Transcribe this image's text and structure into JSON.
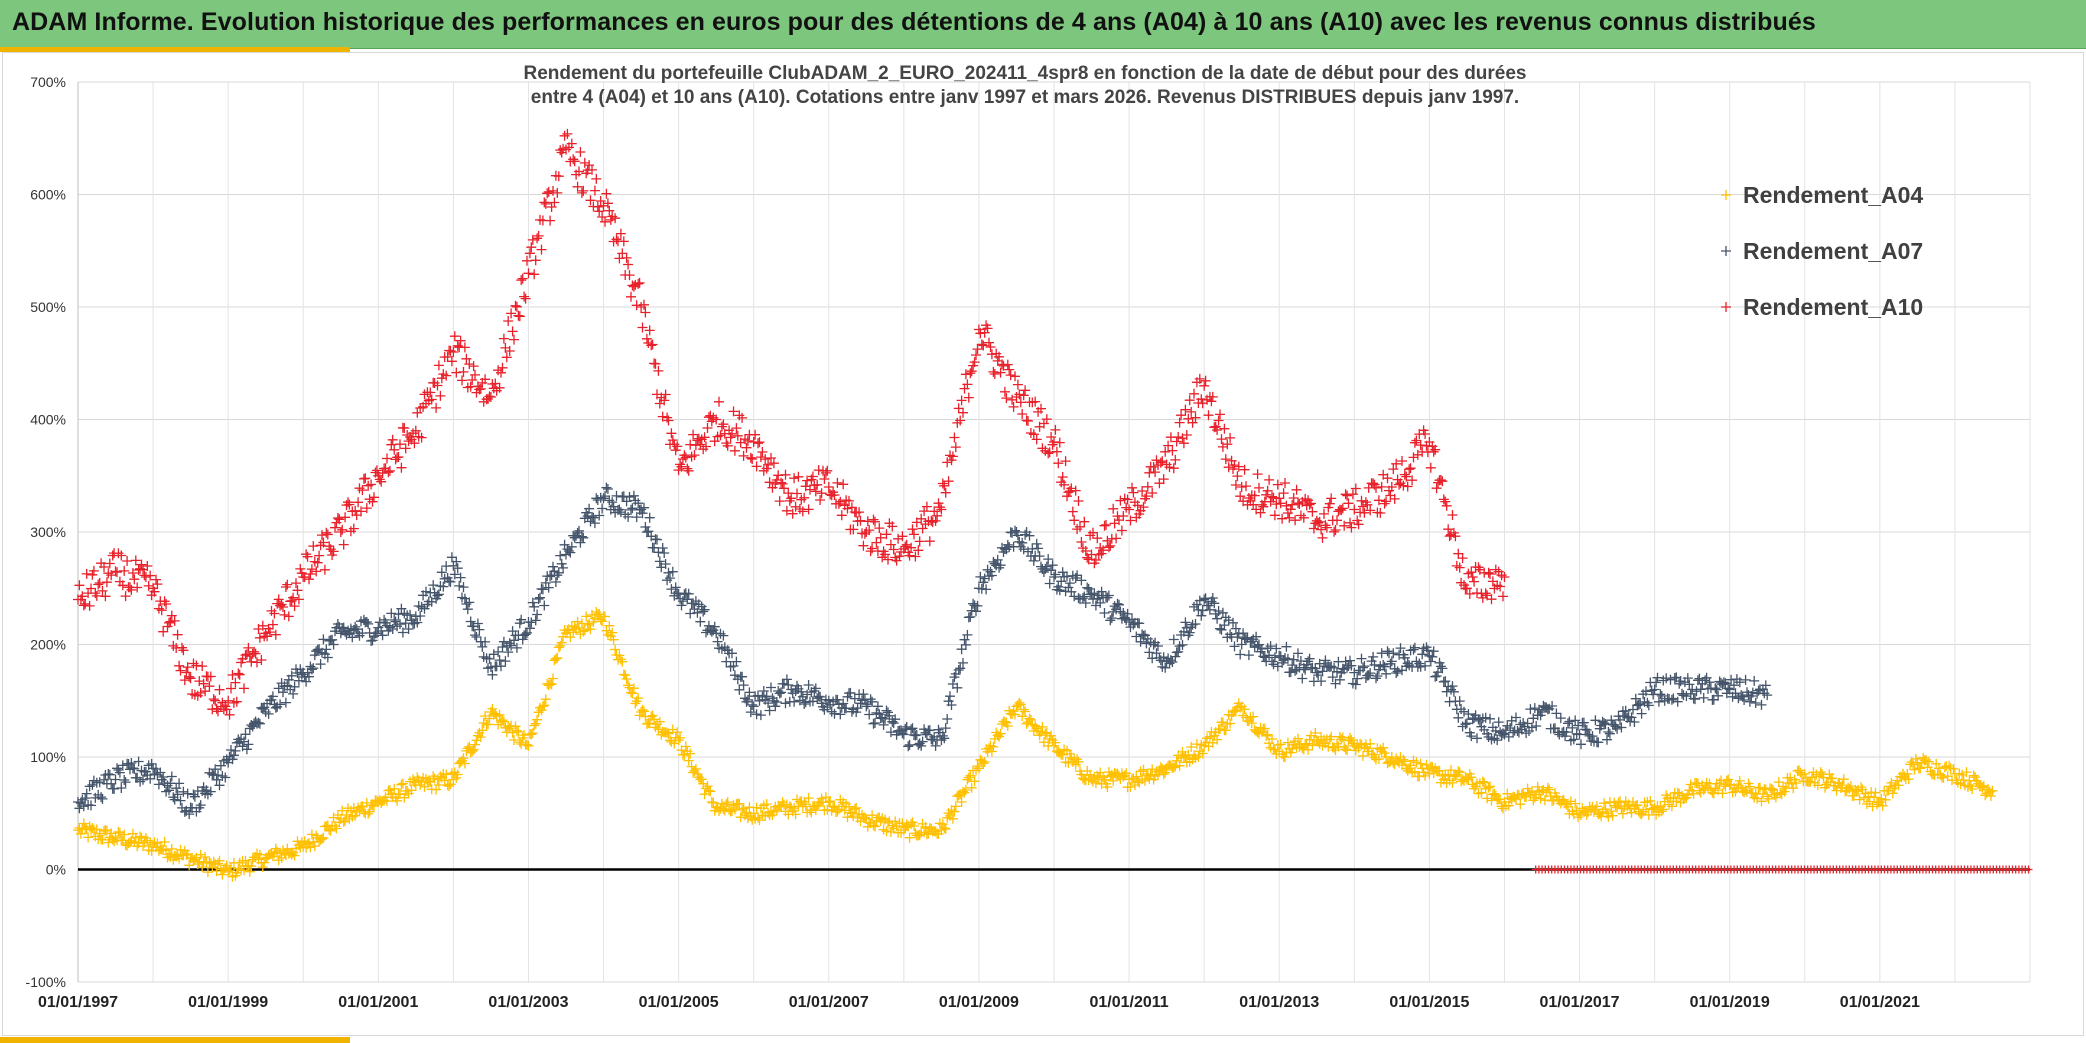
{
  "banner": {
    "title": "ADAM Informe. Evolution historique des performances en euros pour des détentions de 4 ans (A04) à 10 ans (A10) avec les revenus connus distribués"
  },
  "colors": {
    "banner_bg": "#7dc67d",
    "accent": "#f0b400",
    "a04": "#ffc000",
    "a07": "#44546a",
    "a10": "#e8202a",
    "zero_line": "#000000"
  },
  "chart_data": {
    "type": "scatter",
    "marker": "plus",
    "title_line1": "Rendement du portefeuille ClubADAM_2_EURO_202411_4spr8  en fonction de la date de début pour des durées",
    "title_line2": "entre 4 (A04) et 10 ans (A10). Cotations entre janv 1997 et mars 2026. Revenus DISTRIBUES depuis janv 1997.",
    "xlabel": "",
    "ylabel": "",
    "xlim": [
      "01/01/1997",
      "01/01/2023"
    ],
    "ylim": [
      -100,
      700
    ],
    "y_unit": "%",
    "y_ticks": [
      "700%",
      "600%",
      "500%",
      "400%",
      "300%",
      "200%",
      "100%",
      "0%",
      "-100%"
    ],
    "x_ticks": [
      "01/01/1997",
      "01/01/1999",
      "01/01/2001",
      "01/01/2003",
      "01/01/2005",
      "01/01/2007",
      "01/01/2009",
      "01/01/2011",
      "01/01/2013",
      "01/01/2015",
      "01/01/2017",
      "01/01/2019",
      "01/01/2021"
    ],
    "grid": true,
    "legend_position": "top-right",
    "series": [
      {
        "name": "Rendement_A04",
        "x": [
          "01/01/1997",
          "01/07/1997",
          "01/01/1998",
          "01/07/1998",
          "01/01/1999",
          "01/07/1999",
          "01/01/2000",
          "01/07/2000",
          "01/01/2001",
          "01/07/2001",
          "01/01/2002",
          "01/07/2002",
          "01/01/2003",
          "01/07/2003",
          "01/01/2004",
          "01/07/2004",
          "01/01/2005",
          "01/07/2005",
          "01/01/2006",
          "01/07/2006",
          "01/01/2007",
          "01/07/2007",
          "01/01/2008",
          "01/07/2008",
          "01/01/2009",
          "01/07/2009",
          "01/01/2010",
          "01/07/2010",
          "01/01/2011",
          "01/07/2011",
          "01/01/2012",
          "01/07/2012",
          "01/01/2013",
          "01/07/2013",
          "01/01/2014",
          "01/07/2014",
          "01/01/2015",
          "01/07/2015",
          "01/01/2016",
          "01/07/2016",
          "01/01/2017",
          "01/07/2017",
          "01/01/2018",
          "01/07/2018",
          "01/01/2019",
          "01/07/2019",
          "01/01/2020",
          "01/07/2020",
          "01/01/2021",
          "01/07/2021",
          "01/01/2022",
          "01/07/2022"
        ],
        "y": [
          35,
          28,
          22,
          10,
          -2,
          10,
          20,
          45,
          60,
          75,
          80,
          140,
          110,
          210,
          225,
          140,
          115,
          55,
          50,
          55,
          60,
          45,
          35,
          35,
          90,
          145,
          110,
          80,
          80,
          90,
          110,
          145,
          105,
          115,
          110,
          100,
          85,
          80,
          60,
          70,
          50,
          55,
          55,
          70,
          75,
          65,
          85,
          75,
          60,
          95,
          85,
          70
        ]
      },
      {
        "name": "Rendement_A07",
        "x": [
          "01/01/1997",
          "01/07/1997",
          "01/01/1998",
          "01/07/1998",
          "01/01/1999",
          "01/07/1999",
          "01/01/2000",
          "01/07/2000",
          "01/01/2001",
          "01/07/2001",
          "01/01/2002",
          "01/07/2002",
          "01/01/2003",
          "01/07/2003",
          "01/01/2004",
          "01/07/2004",
          "01/01/2005",
          "01/07/2005",
          "01/01/2006",
          "01/07/2006",
          "01/01/2007",
          "01/07/2007",
          "01/01/2008",
          "01/07/2008",
          "01/01/2009",
          "01/07/2009",
          "01/01/2010",
          "01/07/2010",
          "01/01/2011",
          "01/07/2011",
          "01/01/2012",
          "01/07/2012",
          "01/01/2013",
          "01/07/2013",
          "01/01/2014",
          "01/07/2014",
          "01/01/2015",
          "01/07/2015",
          "01/01/2016",
          "01/07/2016",
          "01/01/2017",
          "01/07/2017",
          "01/01/2018",
          "01/07/2018",
          "01/01/2019",
          "01/07/2019"
        ],
        "y": [
          60,
          80,
          90,
          55,
          95,
          140,
          175,
          210,
          215,
          225,
          270,
          180,
          220,
          280,
          330,
          320,
          245,
          210,
          145,
          160,
          150,
          145,
          120,
          115,
          250,
          300,
          260,
          245,
          220,
          185,
          240,
          200,
          190,
          175,
          175,
          185,
          190,
          130,
          120,
          140,
          120,
          125,
          160,
          160,
          160,
          155
        ]
      },
      {
        "name": "Rendement_A10",
        "x": [
          "01/01/1997",
          "01/07/1997",
          "01/01/1998",
          "01/07/1998",
          "01/01/1999",
          "01/07/1999",
          "01/01/2000",
          "01/07/2000",
          "01/01/2001",
          "01/07/2001",
          "01/01/2002",
          "01/07/2002",
          "01/01/2003",
          "01/07/2003",
          "01/01/2004",
          "01/07/2004",
          "01/01/2005",
          "01/07/2005",
          "01/01/2006",
          "01/07/2006",
          "01/01/2007",
          "01/07/2007",
          "01/01/2008",
          "01/07/2008",
          "01/01/2009",
          "01/07/2009",
          "01/01/2010",
          "01/07/2010",
          "01/01/2011",
          "01/07/2011",
          "01/01/2012",
          "01/07/2012",
          "01/01/2013",
          "01/07/2013",
          "01/01/2014",
          "01/07/2014",
          "01/01/2015",
          "01/07/2015",
          "01/01/2016"
        ],
        "y": [
          240,
          265,
          250,
          170,
          150,
          210,
          260,
          300,
          350,
          390,
          460,
          420,
          530,
          640,
          590,
          500,
          355,
          400,
          380,
          330,
          340,
          300,
          285,
          320,
          480,
          420,
          380,
          280,
          320,
          360,
          430,
          340,
          330,
          310,
          320,
          340,
          380,
          250,
          260
        ]
      }
    ],
    "zero_markers_from": "01/06/2016"
  }
}
